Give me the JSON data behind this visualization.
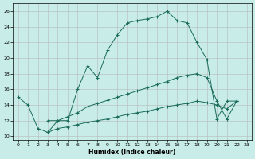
{
  "xlabel": "Humidex (Indice chaleur)",
  "bg_color": "#c8ede8",
  "line_color": "#1a6b5a",
  "xlim": [
    -0.5,
    23.5
  ],
  "ylim": [
    9.5,
    27
  ],
  "yticks": [
    10,
    12,
    14,
    16,
    18,
    20,
    22,
    24,
    26
  ],
  "xticks": [
    0,
    1,
    2,
    3,
    4,
    5,
    6,
    7,
    8,
    9,
    10,
    11,
    12,
    13,
    14,
    15,
    16,
    17,
    18,
    19,
    20,
    21,
    22,
    23
  ],
  "line1_x": [
    0,
    1,
    2,
    3,
    4,
    5,
    6,
    7,
    8,
    9,
    10,
    11,
    12,
    13,
    14,
    15,
    16,
    17,
    18,
    19,
    20,
    21,
    22
  ],
  "line1_y": [
    15,
    14,
    11,
    10.5,
    12,
    12,
    16,
    19,
    17.5,
    21,
    23,
    24.5,
    24.8,
    25,
    25.3,
    26,
    24.8,
    24.5,
    22,
    19.8,
    12.2,
    14.5,
    14.5
  ],
  "line2_x": [
    3,
    4,
    5,
    6,
    7,
    8,
    9,
    10,
    11,
    12,
    13,
    14,
    15,
    16,
    17,
    18,
    19,
    20,
    21,
    22
  ],
  "line2_y": [
    12,
    12,
    12.5,
    13,
    13.8,
    14.2,
    14.6,
    15,
    15.4,
    15.8,
    16.2,
    16.6,
    17,
    17.5,
    17.8,
    18,
    17.5,
    14.5,
    12.2,
    14.5
  ],
  "line3_x": [
    3,
    4,
    5,
    6,
    7,
    8,
    9,
    10,
    11,
    12,
    13,
    14,
    15,
    16,
    17,
    18,
    19,
    20,
    21,
    22
  ],
  "line3_y": [
    10.5,
    11,
    11.2,
    11.5,
    11.8,
    12,
    12.2,
    12.5,
    12.8,
    13,
    13.2,
    13.5,
    13.8,
    14,
    14.2,
    14.5,
    14.3,
    14,
    13.5,
    14.5
  ]
}
